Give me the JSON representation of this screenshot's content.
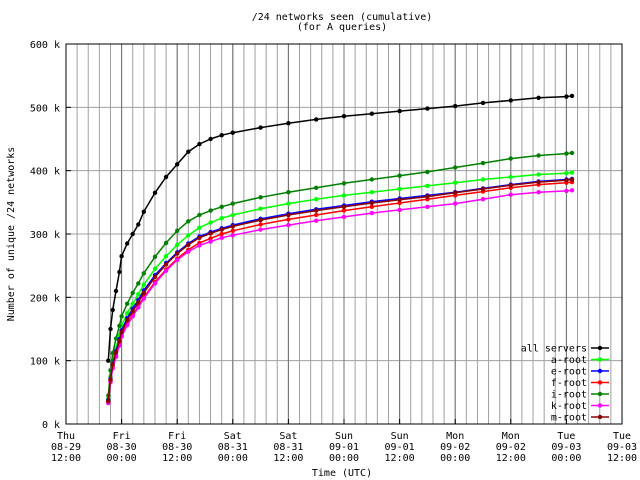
{
  "chart_data": {
    "type": "line",
    "title": "/24 networks seen (cumulative)",
    "subtitle": "(for A queries)",
    "xlabel": "Time (UTC)",
    "ylabel": "Number of unique /24 networks",
    "xlim": [
      0,
      5.0
    ],
    "ylim": [
      0,
      600000
    ],
    "x_ticks": [
      {
        "x": 0.0,
        "line1": "Thu",
        "line2": "08-29",
        "line3": "12:00"
      },
      {
        "x": 0.5,
        "line1": "Fri",
        "line2": "08-30",
        "line3": "00:00"
      },
      {
        "x": 1.0,
        "line1": "Fri",
        "line2": "08-30",
        "line3": "12:00"
      },
      {
        "x": 1.5,
        "line1": "Sat",
        "line2": "08-31",
        "line3": "00:00"
      },
      {
        "x": 2.0,
        "line1": "Sat",
        "line2": "08-31",
        "line3": "12:00"
      },
      {
        "x": 2.5,
        "line1": "Sun",
        "line2": "09-01",
        "line3": "00:00"
      },
      {
        "x": 3.0,
        "line1": "Sun",
        "line2": "09-01",
        "line3": "12:00"
      },
      {
        "x": 3.5,
        "line1": "Mon",
        "line2": "09-02",
        "line3": "00:00"
      },
      {
        "x": 4.0,
        "line1": "Mon",
        "line2": "09-02",
        "line3": "12:00"
      },
      {
        "x": 4.5,
        "line1": "Tue",
        "line2": "09-03",
        "line3": "00:00"
      },
      {
        "x": 5.0,
        "line1": "Tue",
        "line2": "09-03",
        "line3": "12:00"
      }
    ],
    "y_ticks": [
      {
        "y": 0,
        "label": "0 k"
      },
      {
        "y": 100000,
        "label": "100 k"
      },
      {
        "y": 200000,
        "label": "200 k"
      },
      {
        "y": 300000,
        "label": "300 k"
      },
      {
        "y": 400000,
        "label": "400 k"
      },
      {
        "y": 500000,
        "label": "500 k"
      },
      {
        "y": 600000,
        "label": "600 k"
      }
    ],
    "minor_grid_step": 0.1,
    "grid": true,
    "legend_position": "bottom-right",
    "x": [
      0.38,
      0.4,
      0.42,
      0.45,
      0.48,
      0.5,
      0.55,
      0.6,
      0.65,
      0.7,
      0.8,
      0.9,
      1.0,
      1.1,
      1.2,
      1.3,
      1.4,
      1.5,
      1.75,
      2.0,
      2.25,
      2.5,
      2.75,
      3.0,
      3.25,
      3.5,
      3.75,
      4.0,
      4.25,
      4.5,
      4.55
    ],
    "series": [
      {
        "name": "all servers",
        "color": "#000000",
        "values": [
          100000,
          150000,
          180000,
          210000,
          240000,
          265000,
          285000,
          300000,
          315000,
          335000,
          365000,
          390000,
          410000,
          430000,
          442000,
          450000,
          456000,
          460000,
          468000,
          475000,
          481000,
          486000,
          490000,
          494000,
          498000,
          502000,
          507000,
          511000,
          515000,
          517000,
          518000
        ]
      },
      {
        "name": "a-root",
        "color": "#00ff00",
        "values": [
          40000,
          75000,
          100000,
          120000,
          140000,
          155000,
          175000,
          190000,
          205000,
          220000,
          245000,
          265000,
          283000,
          298000,
          310000,
          318000,
          325000,
          330000,
          340000,
          348000,
          355000,
          361000,
          366000,
          371000,
          376000,
          381000,
          386000,
          390000,
          394000,
          396000,
          397000
        ]
      },
      {
        "name": "e-root",
        "color": "#0000ff",
        "values": [
          38000,
          72000,
          96000,
          115000,
          134000,
          148000,
          167000,
          182000,
          196000,
          211000,
          235000,
          254000,
          271000,
          285000,
          296000,
          303000,
          309000,
          314000,
          324000,
          332000,
          339000,
          345000,
          351000,
          356000,
          361000,
          366000,
          372000,
          378000,
          383000,
          386000,
          387000
        ]
      },
      {
        "name": "f-root",
        "color": "#ff0000",
        "values": [
          35000,
          68000,
          90000,
          108000,
          126000,
          140000,
          158000,
          172000,
          186000,
          200000,
          224000,
          244000,
          261000,
          275000,
          286000,
          293000,
          300000,
          305000,
          315000,
          323000,
          330000,
          337000,
          343000,
          349000,
          355000,
          361000,
          367000,
          373000,
          378000,
          381000,
          382000
        ]
      },
      {
        "name": "i-root",
        "color": "#008000",
        "values": [
          45000,
          85000,
          112000,
          135000,
          155000,
          170000,
          190000,
          207000,
          222000,
          238000,
          264000,
          286000,
          305000,
          320000,
          330000,
          337000,
          343000,
          348000,
          358000,
          366000,
          373000,
          380000,
          386000,
          392000,
          398000,
          405000,
          412000,
          419000,
          424000,
          427000,
          428000
        ]
      },
      {
        "name": "k-root",
        "color": "#ff00ff",
        "values": [
          33000,
          66000,
          88000,
          106000,
          124000,
          138000,
          156000,
          170000,
          184000,
          198000,
          222000,
          242000,
          259000,
          272000,
          282000,
          288000,
          294000,
          298000,
          307000,
          314000,
          321000,
          327000,
          333000,
          338000,
          343000,
          348000,
          355000,
          362000,
          366000,
          368000,
          369000
        ]
      },
      {
        "name": "m-root",
        "color": "#8b0000",
        "values": [
          36000,
          70000,
          94000,
          113000,
          131000,
          145000,
          164000,
          178000,
          192000,
          207000,
          232000,
          252000,
          269000,
          283000,
          294000,
          301000,
          307000,
          312000,
          322000,
          330000,
          337000,
          343000,
          349000,
          354000,
          359000,
          365000,
          371000,
          377000,
          382000,
          385000,
          386000
        ]
      }
    ]
  }
}
